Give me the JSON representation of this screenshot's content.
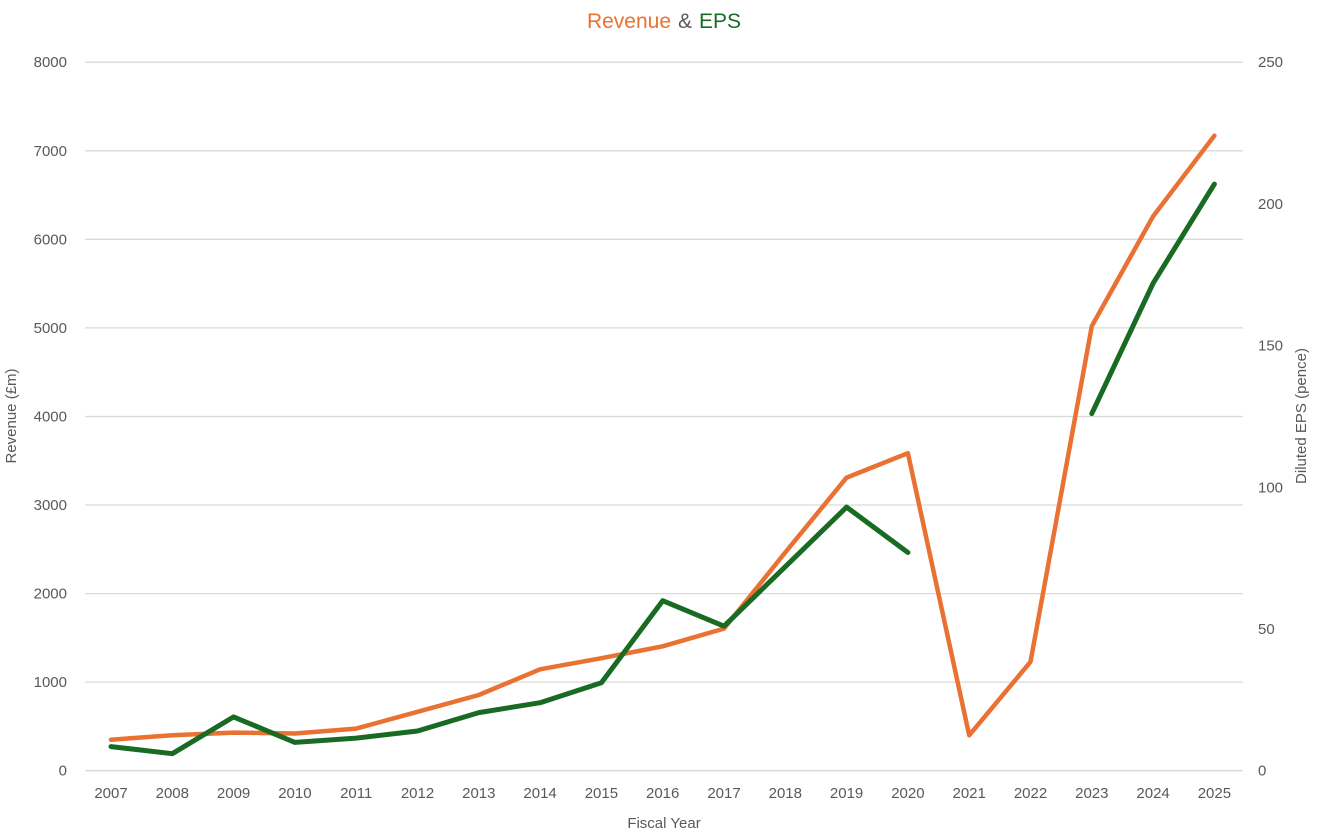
{
  "chart_data": {
    "type": "line",
    "title_rich": [
      {
        "text": "Revenue",
        "color": "#E97132"
      },
      {
        "text": "&",
        "color": "#595959"
      },
      {
        "text": "EPS",
        "color": "#196B24"
      }
    ],
    "x": [
      2007,
      2008,
      2009,
      2010,
      2011,
      2012,
      2013,
      2014,
      2015,
      2016,
      2017,
      2018,
      2019,
      2020,
      2021,
      2022,
      2023,
      2024,
      2025
    ],
    "series": [
      {
        "name": "Revenue",
        "axis": "left",
        "color": "#E97132",
        "values": [
          350,
          400,
          430,
          420,
          475,
          665,
          855,
          1145,
          1270,
          1405,
          1605,
          2465,
          3310,
          3585,
          400,
          1230,
          5020,
          6260,
          7170
        ]
      },
      {
        "name": "EPS",
        "axis": "right",
        "color": "#196B24",
        "values": [
          8.5,
          6,
          19,
          10,
          11.5,
          14,
          20.5,
          24,
          31,
          60,
          51,
          72,
          93,
          77,
          null,
          null,
          126,
          172,
          207
        ]
      }
    ],
    "axes": {
      "left": {
        "label": "Revenue (£m)",
        "min": 0,
        "max": 8000,
        "ticks": [
          0,
          1000,
          2000,
          3000,
          4000,
          5000,
          6000,
          7000,
          8000
        ]
      },
      "right": {
        "label": "Diluted EPS (pence)",
        "min": 0,
        "max": 250,
        "ticks": [
          0,
          50,
          100,
          150,
          200,
          250
        ]
      },
      "x": {
        "label": "Fiscal Year"
      }
    },
    "grid": true,
    "legend": "none",
    "text_color": "#595959",
    "gridline_color": "#D9D9D9",
    "background": "#FFFFFF"
  }
}
